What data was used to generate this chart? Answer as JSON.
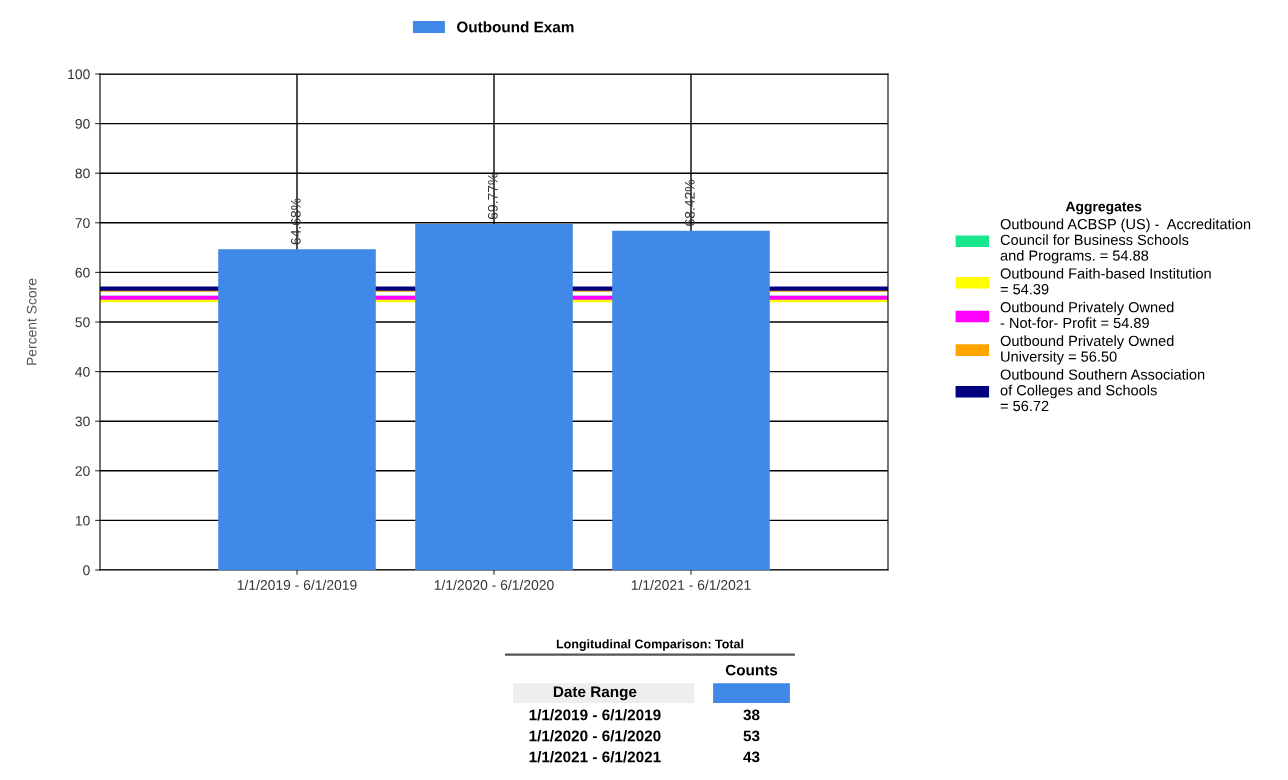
{
  "chart_data": [
    {
      "type": "bar",
      "ylabel": "Percent Score",
      "categories": [
        "1/1/2019 - 6/1/2019",
        "1/1/2020 - 6/1/2020",
        "1/1/2021 - 6/1/2021"
      ],
      "series": [
        {
          "name": "Outbound Exam",
          "color": "#4189e8",
          "values": [
            64.68,
            69.77,
            68.42
          ],
          "value_labels": [
            "64.68%",
            "69.77%",
            "68.42%"
          ]
        }
      ],
      "ylim": [
        0,
        100
      ],
      "yticks": [
        0,
        10,
        20,
        30,
        40,
        50,
        60,
        70,
        80,
        90,
        100
      ],
      "grid": true,
      "legend": "top",
      "legend_title": "Aggregates",
      "ref_lines": [
        {
          "axis": "y",
          "value": 54.88,
          "label": "Outbound ACBSP (US) -  Accreditation\nCouncil for Business Schools\nand Programs. = 54.88",
          "color": "#19e68c"
        },
        {
          "axis": "y",
          "value": 54.39,
          "label": "Outbound Faith-based Institution\n= 54.39",
          "color": "#ffff00"
        },
        {
          "axis": "y",
          "value": 54.89,
          "label": "Outbound Privately Owned\n- Not-for- Profit = 54.89",
          "color": "#ff00ff"
        },
        {
          "axis": "y",
          "value": 56.5,
          "label": "Outbound Privately Owned\nUniversity = 56.50",
          "color": "#ffa500"
        },
        {
          "axis": "y",
          "value": 56.72,
          "label": "Outbound Southern Association\nof Colleges and Schools\n= 56.72",
          "color": "#000080"
        }
      ]
    },
    {
      "type": "other",
      "title": "Longitudinal Comparison: Total",
      "xlabel": "Date Range",
      "ylabel": "Counts",
      "color": "#4189e8",
      "categories": [
        "1/1/2019 - 6/1/2019",
        "1/1/2020 - 6/1/2020",
        "1/1/2021 - 6/1/2021"
      ],
      "values": [
        38,
        53,
        43
      ],
      "data_labels": true
    }
  ]
}
